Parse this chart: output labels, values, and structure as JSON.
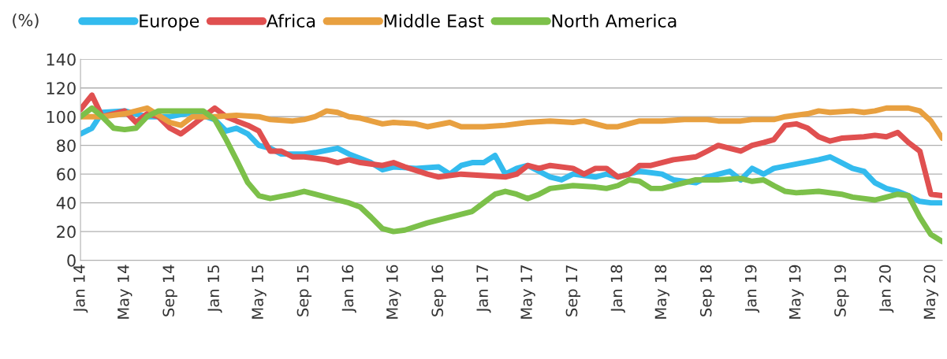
{
  "chart_data": {
    "type": "line",
    "ylabel": "(%)",
    "ylim": [
      0,
      140
    ],
    "yticks": [
      0,
      20,
      40,
      60,
      80,
      100,
      120,
      140
    ],
    "xlim": [
      "2014-01",
      "2020-06"
    ],
    "xticks": [
      {
        "value": "2014-01",
        "label": "Jan 14"
      },
      {
        "value": "2014-05",
        "label": "May 14"
      },
      {
        "value": "2014-09",
        "label": "Sep 14"
      },
      {
        "value": "2015-01",
        "label": "Jan 15"
      },
      {
        "value": "2015-05",
        "label": "May 15"
      },
      {
        "value": "2015-09",
        "label": "Sep 15"
      },
      {
        "value": "2016-01",
        "label": "Jan 16"
      },
      {
        "value": "2016-05",
        "label": "May 16"
      },
      {
        "value": "2016-09",
        "label": "Sep 16"
      },
      {
        "value": "2017-01",
        "label": "Jan 17"
      },
      {
        "value": "2017-05",
        "label": "May 17"
      },
      {
        "value": "2017-09",
        "label": "Sep 17"
      },
      {
        "value": "2018-01",
        "label": "Jan 18"
      },
      {
        "value": "2018-05",
        "label": "May 18"
      },
      {
        "value": "2018-09",
        "label": "Sep 18"
      },
      {
        "value": "2019-01",
        "label": "Jan 19"
      },
      {
        "value": "2019-05",
        "label": "May 19"
      },
      {
        "value": "2019-09",
        "label": "Sep 19"
      },
      {
        "value": "2020-01",
        "label": "Jan 20"
      },
      {
        "value": "2020-05",
        "label": "May 20"
      }
    ],
    "grid": "y",
    "legend": "top",
    "marker": "none",
    "line_style": "solid",
    "series": [
      {
        "name": "Europe",
        "color": "#33bbee",
        "x": [
          "2014-01",
          "2014-02",
          "2014-03",
          "2014-05",
          "2014-07",
          "2014-09",
          "2014-11",
          "2015-01",
          "2015-02",
          "2015-03",
          "2015-04",
          "2015-05",
          "2015-06",
          "2015-07",
          "2015-09",
          "2015-10",
          "2015-12",
          "2016-01",
          "2016-03",
          "2016-04",
          "2016-05",
          "2016-07",
          "2016-09",
          "2016-10",
          "2016-11",
          "2016-12",
          "2017-01",
          "2017-02",
          "2017-03",
          "2017-04",
          "2017-05",
          "2017-07",
          "2017-08",
          "2017-09",
          "2017-11",
          "2017-12",
          "2018-01",
          "2018-03",
          "2018-05",
          "2018-06",
          "2018-08",
          "2018-09",
          "2018-11",
          "2018-12",
          "2019-01",
          "2019-02",
          "2019-03",
          "2019-05",
          "2019-07",
          "2019-08",
          "2019-09",
          "2019-10",
          "2019-11",
          "2019-12",
          "2020-01",
          "2020-02",
          "2020-03",
          "2020-04",
          "2020-05",
          "2020-06"
        ],
        "values": [
          88,
          92,
          103,
          104,
          100,
          100,
          103,
          98,
          90,
          92,
          88,
          80,
          78,
          74,
          74,
          75,
          78,
          74,
          68,
          63,
          65,
          64,
          65,
          60,
          66,
          68,
          68,
          73,
          60,
          64,
          66,
          58,
          56,
          60,
          58,
          60,
          58,
          62,
          60,
          56,
          54,
          58,
          62,
          56,
          64,
          60,
          64,
          67,
          70,
          72,
          68,
          64,
          62,
          54,
          50,
          48,
          45,
          41,
          40,
          40
        ]
      },
      {
        "name": "Africa",
        "color": "#e05050",
        "x": [
          "2014-01",
          "2014-02",
          "2014-03",
          "2014-04",
          "2014-05",
          "2014-06",
          "2014-07",
          "2014-08",
          "2014-09",
          "2014-10",
          "2014-11",
          "2014-12",
          "2015-01",
          "2015-02",
          "2015-03",
          "2015-04",
          "2015-05",
          "2015-06",
          "2015-07",
          "2015-08",
          "2015-09",
          "2015-11",
          "2015-12",
          "2016-01",
          "2016-02",
          "2016-04",
          "2016-05",
          "2016-06",
          "2016-08",
          "2016-09",
          "2016-11",
          "2017-01",
          "2017-03",
          "2017-04",
          "2017-05",
          "2017-06",
          "2017-07",
          "2017-09",
          "2017-10",
          "2017-11",
          "2017-12",
          "2018-01",
          "2018-02",
          "2018-03",
          "2018-04",
          "2018-06",
          "2018-08",
          "2018-09",
          "2018-10",
          "2018-11",
          "2018-12",
          "2019-01",
          "2019-02",
          "2019-03",
          "2019-04",
          "2019-05",
          "2019-06",
          "2019-07",
          "2019-08",
          "2019-09",
          "2019-11",
          "2019-12",
          "2020-01",
          "2020-02",
          "2020-03",
          "2020-04",
          "2020-05",
          "2020-06"
        ],
        "values": [
          105,
          115,
          100,
          102,
          104,
          96,
          102,
          100,
          92,
          88,
          94,
          100,
          106,
          100,
          97,
          94,
          90,
          76,
          76,
          72,
          72,
          70,
          68,
          70,
          68,
          66,
          68,
          65,
          60,
          58,
          60,
          59,
          58,
          60,
          66,
          64,
          66,
          64,
          60,
          64,
          64,
          58,
          60,
          66,
          66,
          70,
          72,
          76,
          80,
          78,
          76,
          80,
          82,
          84,
          94,
          95,
          92,
          86,
          83,
          85,
          86,
          87,
          86,
          89,
          82,
          76,
          46,
          45
        ]
      },
      {
        "name": "Middle East",
        "color": "#e8a040",
        "x": [
          "2014-01",
          "2014-03",
          "2014-05",
          "2014-07",
          "2014-09",
          "2014-10",
          "2014-11",
          "2015-01",
          "2015-03",
          "2015-05",
          "2015-06",
          "2015-08",
          "2015-09",
          "2015-10",
          "2015-11",
          "2015-12",
          "2016-01",
          "2016-02",
          "2016-04",
          "2016-05",
          "2016-07",
          "2016-08",
          "2016-10",
          "2016-11",
          "2017-01",
          "2017-03",
          "2017-05",
          "2017-07",
          "2017-09",
          "2017-10",
          "2017-12",
          "2018-01",
          "2018-03",
          "2018-05",
          "2018-07",
          "2018-09",
          "2018-10",
          "2018-12",
          "2019-01",
          "2019-03",
          "2019-04",
          "2019-06",
          "2019-07",
          "2019-08",
          "2019-10",
          "2019-11",
          "2019-12",
          "2020-01",
          "2020-03",
          "2020-04",
          "2020-05",
          "2020-06"
        ],
        "values": [
          100,
          100,
          102,
          106,
          96,
          94,
          100,
          100,
          101,
          100,
          98,
          97,
          98,
          100,
          104,
          103,
          100,
          99,
          95,
          96,
          95,
          93,
          96,
          93,
          93,
          94,
          96,
          97,
          96,
          97,
          93,
          93,
          97,
          97,
          98,
          98,
          97,
          97,
          98,
          98,
          100,
          102,
          104,
          103,
          104,
          103,
          104,
          106,
          106,
          104,
          97,
          85
        ]
      },
      {
        "name": "North America",
        "color": "#7cc04a",
        "x": [
          "2014-01",
          "2014-02",
          "2014-03",
          "2014-04",
          "2014-05",
          "2014-06",
          "2014-07",
          "2014-08",
          "2014-10",
          "2014-12",
          "2015-01",
          "2015-02",
          "2015-03",
          "2015-04",
          "2015-05",
          "2015-06",
          "2015-08",
          "2015-09",
          "2015-10",
          "2015-12",
          "2016-01",
          "2016-02",
          "2016-03",
          "2016-04",
          "2016-05",
          "2016-06",
          "2016-08",
          "2016-10",
          "2016-12",
          "2017-01",
          "2017-02",
          "2017-03",
          "2017-04",
          "2017-05",
          "2017-06",
          "2017-07",
          "2017-09",
          "2017-11",
          "2017-12",
          "2018-01",
          "2018-02",
          "2018-03",
          "2018-04",
          "2018-05",
          "2018-06",
          "2018-07",
          "2018-08",
          "2018-10",
          "2018-12",
          "2019-01",
          "2019-02",
          "2019-03",
          "2019-04",
          "2019-05",
          "2019-07",
          "2019-09",
          "2019-10",
          "2019-12",
          "2020-01",
          "2020-02",
          "2020-03",
          "2020-04",
          "2020-05",
          "2020-06"
        ],
        "values": [
          100,
          106,
          100,
          92,
          91,
          92,
          100,
          104,
          104,
          104,
          98,
          84,
          70,
          54,
          45,
          43,
          46,
          48,
          46,
          42,
          40,
          37,
          30,
          22,
          20,
          21,
          26,
          30,
          34,
          40,
          46,
          48,
          46,
          43,
          46,
          50,
          52,
          51,
          50,
          52,
          56,
          55,
          50,
          50,
          52,
          54,
          56,
          56,
          57,
          55,
          56,
          52,
          48,
          47,
          48,
          46,
          44,
          42,
          44,
          46,
          45,
          30,
          18,
          13
        ]
      }
    ]
  }
}
